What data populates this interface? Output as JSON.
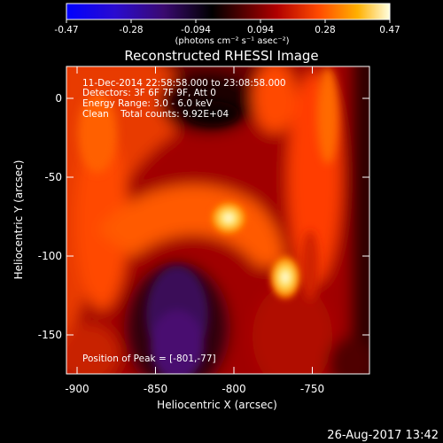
{
  "colorbar": {
    "ticks": [
      "-0.47",
      "-0.28",
      "-0.094",
      "0.094",
      "0.28",
      "0.47"
    ],
    "unit_label": "(photons cm⁻² s⁻¹ asec⁻²)",
    "range": [
      -0.47,
      0.47
    ]
  },
  "title": "Reconstructed RHESSI Image",
  "info": {
    "time_range": "11-Dec-2014 22:58:58.000 to 23:08:58.000",
    "detectors": "Detectors: 3F 6F 7F 9F, Att 0",
    "energy": "Energy Range: 3.0 - 6.0 keV",
    "clean": "Clean    Total counts: 9.92E+04",
    "peak": "Position of Peak = [-801,-77]"
  },
  "axes": {
    "xlabel": "Heliocentric X (arcsec)",
    "ylabel": "Heliocentric Y (arcsec)",
    "xticks": [
      "-900",
      "-850",
      "-800",
      "-750"
    ],
    "yticks": [
      "0",
      "-50",
      "-100",
      "-150"
    ],
    "xlim": [
      -903,
      -715
    ],
    "ylim": [
      -173,
      17
    ]
  },
  "timestamp": "26-Aug-2017 13:42"
}
